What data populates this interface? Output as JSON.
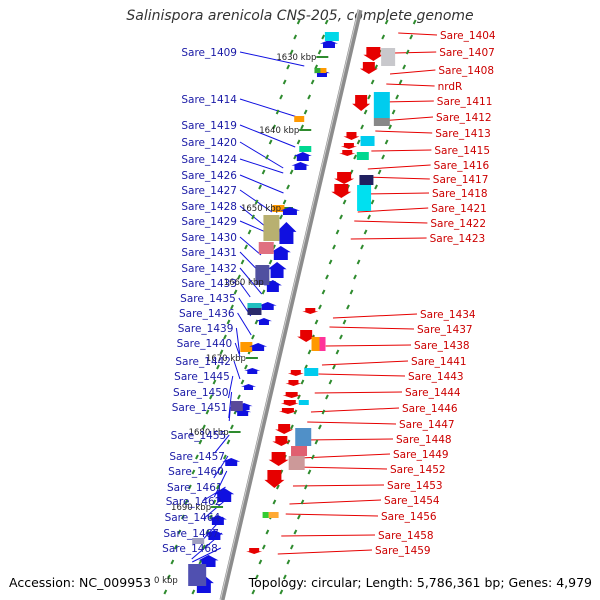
{
  "title": "Salinispora arenicola CNS-205, complete genome",
  "footer": {
    "accession": "Accession: NC_009953",
    "topology": "Topology: circular; Length: 5,786,361 bp; Genes: 4,979"
  },
  "kbp_labels": [
    "1630 kbp",
    "1640 kbp",
    "1650 kbp",
    "1660 kbp",
    "1670 kbp",
    "1680 kbp",
    "1690 kbp",
    "0 kbp"
  ],
  "left_genes": [
    "Sare_1409",
    "Sare_1414",
    "Sare_1419",
    "Sare_1420",
    "Sare_1424",
    "Sare_1426",
    "Sare_1427",
    "Sare_1428",
    "Sare_1429",
    "Sare_1430",
    "Sare_1431",
    "Sare_1432",
    "Sare_1433",
    "Sare_1435",
    "Sare_1436",
    "Sare_1439",
    "Sare_1440",
    "Sare_1442",
    "Sare_1445",
    "Sare_1450",
    "Sare_1451",
    "Sare_1455",
    "Sare_1457",
    "Sare_1460",
    "Sare_1461",
    "Sare_1462",
    "Sare_1464",
    "Sare_1467",
    "Sare_1468"
  ],
  "right_genes": [
    "Sare_1404",
    "Sare_1407",
    "Sare_1408",
    "nrdR",
    "Sare_1411",
    "Sare_1412",
    "Sare_1413",
    "Sare_1415",
    "Sare_1416",
    "Sare_1417",
    "Sare_1418",
    "Sare_1421",
    "Sare_1422",
    "Sare_1423",
    "Sare_1434",
    "Sare_1437",
    "Sare_1438",
    "Sare_1441",
    "Sare_1443",
    "Sare_1444",
    "Sare_1446",
    "Sare_1447",
    "Sare_1448",
    "Sare_1449",
    "Sare_1452",
    "Sare_1453",
    "Sare_1454",
    "Sare_1456",
    "Sare_1458",
    "Sare_1459"
  ],
  "colors": {
    "left_label": "#1a1aa6",
    "right_label": "#cc0000",
    "forward": "#1010e0",
    "reverse": "#e60000",
    "backbone": "#8c8c8c",
    "tick": "#2e8b2e"
  }
}
